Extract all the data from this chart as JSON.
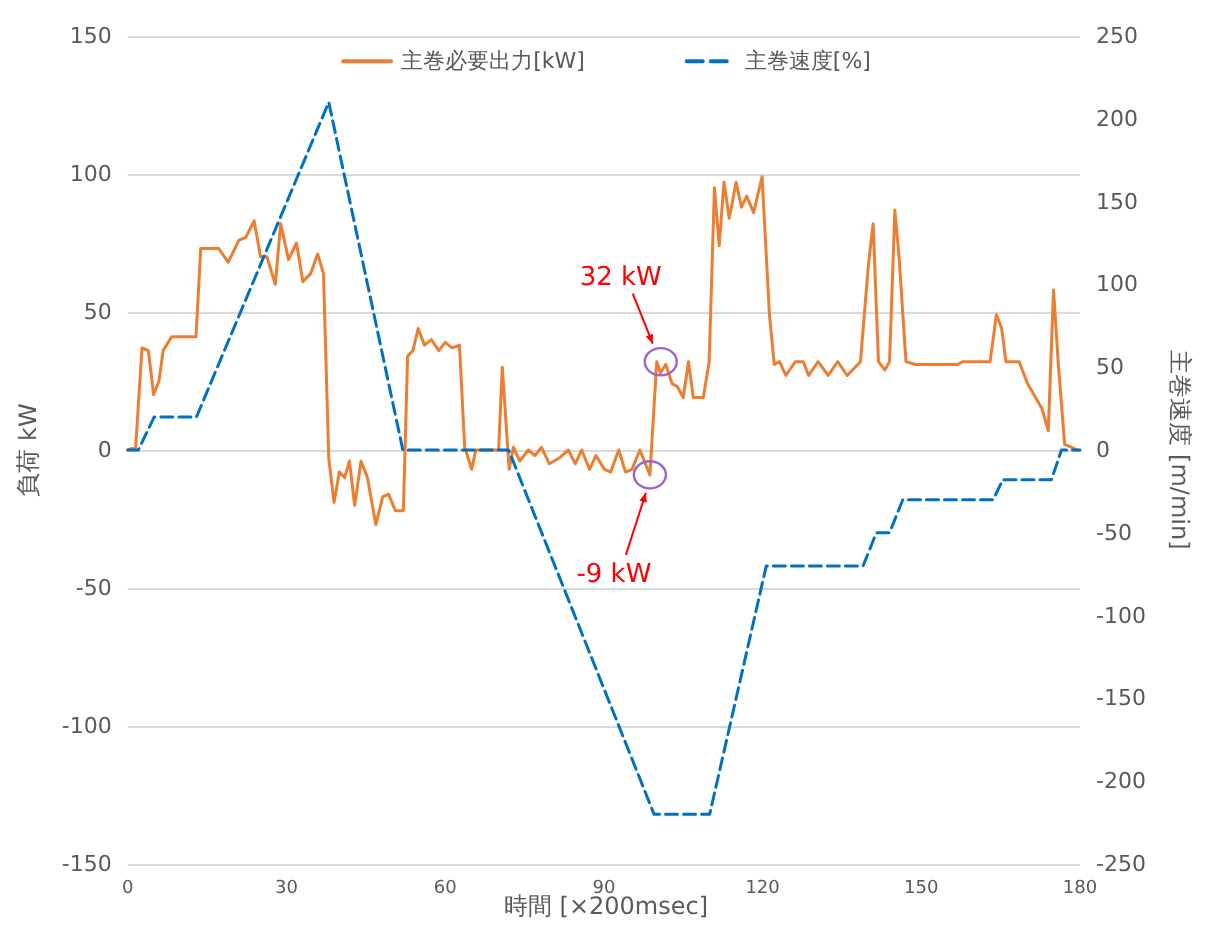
{
  "chart_data": {
    "type": "line",
    "xlabel": "時間 [×200msec]",
    "ylabel": "負荷 kW",
    "y2label": "主巻速度 [m/min]",
    "xlim": [
      0,
      180
    ],
    "xticks": [
      0,
      30,
      60,
      90,
      120,
      150,
      180
    ],
    "ylim": [
      -150,
      150
    ],
    "yticks": [
      -150,
      -100,
      -50,
      0,
      50,
      100,
      150
    ],
    "y2lim": [
      -250,
      250
    ],
    "y2ticks": [
      -250,
      -200,
      -150,
      -100,
      -50,
      0,
      50,
      100,
      150,
      200,
      250
    ],
    "grid": "y",
    "legend": "top",
    "marker": "none",
    "series": [
      {
        "name": "主巻必要出力[kW]",
        "color": "#ed7d31",
        "line_style": "solid",
        "x": [
          0,
          1.5,
          2.7,
          3.9,
          4.9,
          5.9,
          6.7,
          8.3,
          12.9,
          13.8,
          17.2,
          19,
          21,
          22.3,
          23.9,
          25.1,
          26.3,
          27.9,
          28.9,
          30.4,
          31.9,
          33.1,
          34.6,
          35.9,
          37,
          38,
          39,
          40,
          41,
          41.9,
          42.9,
          44.1,
          45.3,
          46.9,
          48.2,
          49.3,
          50.6,
          52.1,
          52.9,
          53.9,
          54.9,
          56.1,
          57.4,
          58.8,
          60,
          61.3,
          62.7,
          63.7,
          65,
          65.8,
          70.1,
          70.8,
          72.1,
          72.9,
          74.1,
          75.7,
          77,
          78.2,
          79.7,
          81.5,
          83.3,
          84.6,
          85.8,
          87.3,
          88.5,
          90.1,
          91.3,
          92.8,
          94.1,
          95.3,
          96.8,
          98.7,
          100,
          100.7,
          101.7,
          102.9,
          103.9,
          105,
          106,
          106.9,
          108.8,
          109.9,
          110.9,
          111.8,
          112.7,
          113.7,
          115,
          116,
          117,
          118.3,
          119.9,
          121.3,
          122.2,
          123.2,
          124.4,
          126.2,
          127.7,
          128.7,
          130.5,
          132.4,
          134.2,
          136,
          138.5,
          140,
          140.9,
          141.9,
          143.1,
          144,
          145,
          145.8,
          147.1,
          148.9,
          156.9,
          157.8,
          163,
          164.2,
          165.2,
          166,
          168.5,
          170.1,
          171.6,
          172.8,
          174,
          175,
          175.9,
          177.1,
          178.3,
          179.5
        ],
        "values": [
          0,
          1,
          37,
          36,
          20,
          25,
          36,
          41,
          41,
          73,
          73,
          68,
          76,
          77,
          83,
          70,
          70,
          60,
          82,
          69,
          75,
          61,
          64,
          71,
          64,
          -3,
          -19,
          -8,
          -10,
          -4,
          -20,
          -4,
          -10,
          -27,
          -17,
          -16,
          -22,
          -22,
          34,
          36,
          44,
          38,
          40,
          36,
          39,
          37,
          38,
          1,
          -7,
          0,
          0,
          30,
          -7,
          1,
          -4,
          0,
          -2,
          1,
          -5,
          -3,
          0,
          -5,
          0,
          -7,
          -2,
          -7,
          -8,
          0,
          -8,
          -7,
          0,
          -9,
          32,
          28,
          31,
          24,
          23,
          19,
          32,
          19,
          19,
          32,
          95,
          74,
          97,
          84,
          97,
          88,
          92,
          86,
          99,
          49,
          31,
          32,
          27,
          32,
          32,
          27,
          32,
          27,
          32,
          27,
          32,
          67,
          82,
          32,
          29,
          32,
          87,
          70,
          32,
          31,
          31,
          32,
          32,
          49,
          44,
          32,
          32,
          24,
          19,
          15,
          7,
          58,
          31,
          2,
          1,
          0
        ]
      },
      {
        "name": "主巻速度[%]",
        "color": "#0070c0",
        "line_style": "dashed",
        "axis": "y2",
        "x": [
          0,
          2,
          5,
          13,
          38,
          52,
          72,
          99.5,
          110,
          120.7,
          139,
          141.5,
          144,
          146.5,
          163.6,
          165.4,
          174.6,
          176.5,
          180
        ],
        "values": [
          0,
          0,
          20,
          20,
          210,
          0,
          0,
          -220,
          -220,
          -70,
          -70,
          -50,
          -50,
          -30,
          -30,
          -18,
          -18,
          0,
          0
        ]
      }
    ],
    "annotations": [
      {
        "text": "32 kW",
        "x": 100,
        "y": 32
      },
      {
        "text": "-9 kW",
        "x": 98.7,
        "y": -9
      }
    ]
  }
}
